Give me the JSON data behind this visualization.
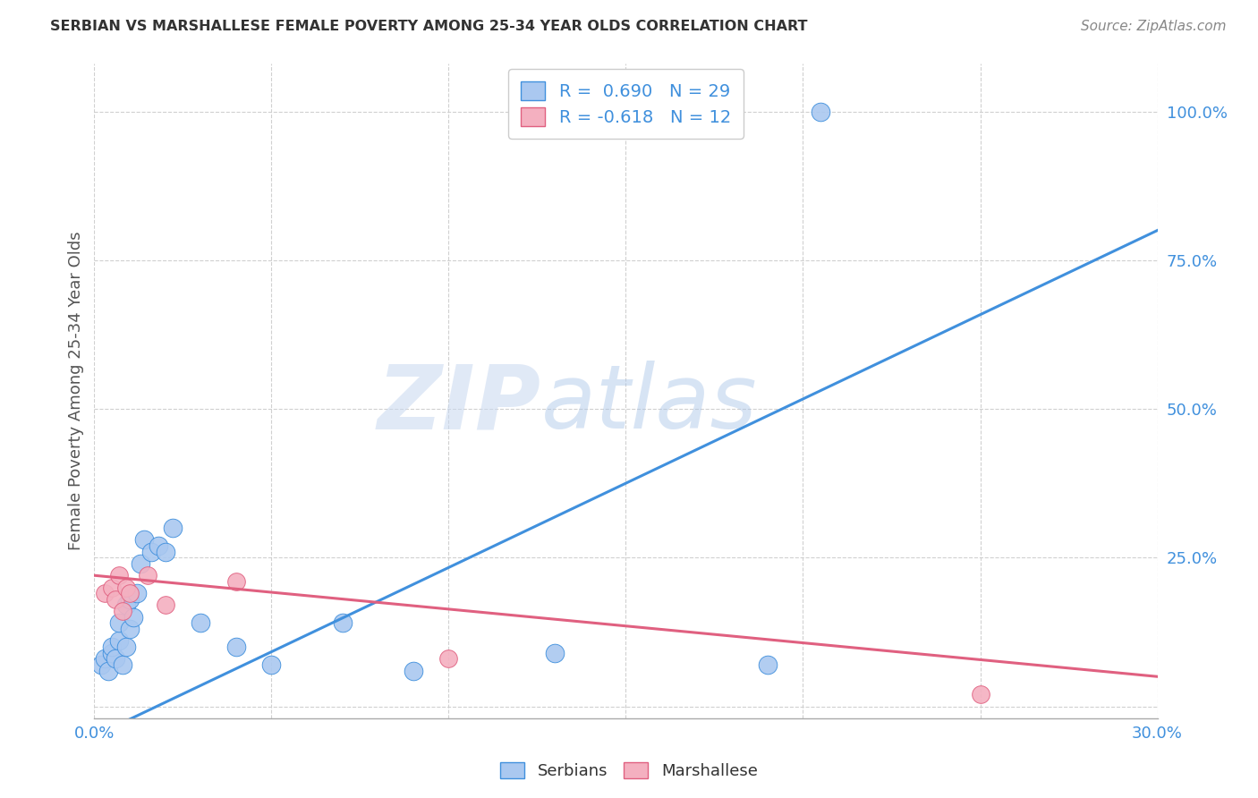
{
  "title": "SERBIAN VS MARSHALLESE FEMALE POVERTY AMONG 25-34 YEAR OLDS CORRELATION CHART",
  "source": "Source: ZipAtlas.com",
  "ylabel": "Female Poverty Among 25-34 Year Olds",
  "xlim": [
    0.0,
    0.3
  ],
  "ylim": [
    -0.02,
    1.08
  ],
  "xticks": [
    0.0,
    0.05,
    0.1,
    0.15,
    0.2,
    0.25,
    0.3
  ],
  "xticklabels": [
    "0.0%",
    "",
    "",
    "",
    "",
    "",
    "30.0%"
  ],
  "yticks_right": [
    0.0,
    0.25,
    0.5,
    0.75,
    1.0
  ],
  "ytick_right_labels": [
    "",
    "25.0%",
    "50.0%",
    "75.0%",
    "100.0%"
  ],
  "serbian_color": "#aac8f0",
  "marshallese_color": "#f4b0c0",
  "serbian_line_color": "#4090dd",
  "marshallese_line_color": "#e06080",
  "serbian_R": 0.69,
  "serbian_N": 29,
  "marshallese_R": -0.618,
  "marshallese_N": 12,
  "legend_R_color": "#4090dd",
  "watermark_zip": "ZIP",
  "watermark_atlas": "atlas",
  "background_color": "#ffffff",
  "grid_color": "#d0d0d0",
  "title_color": "#333333",
  "source_color": "#888888",
  "ylabel_color": "#555555",
  "tick_color": "#4090dd",
  "serbian_x": [
    0.002,
    0.003,
    0.004,
    0.005,
    0.005,
    0.006,
    0.007,
    0.007,
    0.008,
    0.009,
    0.009,
    0.01,
    0.01,
    0.011,
    0.012,
    0.013,
    0.014,
    0.016,
    0.018,
    0.02,
    0.022,
    0.03,
    0.04,
    0.05,
    0.07,
    0.09,
    0.13,
    0.19,
    0.205
  ],
  "serbian_y": [
    0.07,
    0.08,
    0.06,
    0.09,
    0.1,
    0.08,
    0.11,
    0.14,
    0.07,
    0.1,
    0.17,
    0.13,
    0.18,
    0.15,
    0.19,
    0.24,
    0.28,
    0.26,
    0.27,
    0.26,
    0.3,
    0.14,
    0.1,
    0.07,
    0.14,
    0.06,
    0.09,
    0.07,
    1.0
  ],
  "marshallese_x": [
    0.003,
    0.005,
    0.006,
    0.007,
    0.008,
    0.009,
    0.01,
    0.015,
    0.02,
    0.04,
    0.1,
    0.25
  ],
  "marshallese_y": [
    0.19,
    0.2,
    0.18,
    0.22,
    0.16,
    0.2,
    0.19,
    0.22,
    0.17,
    0.21,
    0.08,
    0.02
  ],
  "blue_line_x": [
    0.0,
    0.3
  ],
  "blue_line_y": [
    -0.05,
    0.8
  ],
  "pink_line_x": [
    0.0,
    0.3
  ],
  "pink_line_y": [
    0.22,
    0.05
  ]
}
